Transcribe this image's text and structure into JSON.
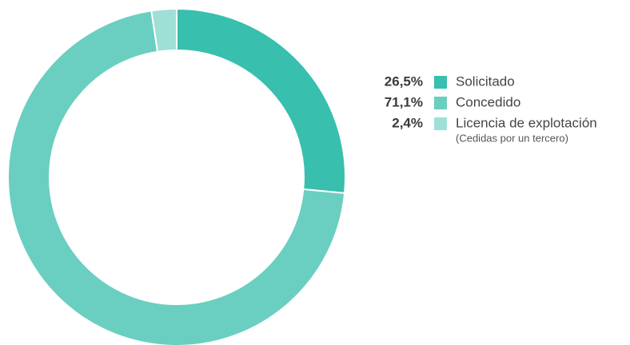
{
  "chart_data": {
    "type": "donut",
    "categories": [
      "Solicitado",
      "Concedido",
      "Licencia de explotación"
    ],
    "values": [
      26.5,
      71.1,
      2.4
    ],
    "value_labels": [
      "26,5%",
      "71,1%",
      "2,4%"
    ],
    "sublabels": [
      null,
      null,
      "(Cedidas por un tercero)"
    ],
    "colors": [
      "#38bfae",
      "#6acfc0",
      "#9fe0d6"
    ],
    "legend": "right"
  }
}
